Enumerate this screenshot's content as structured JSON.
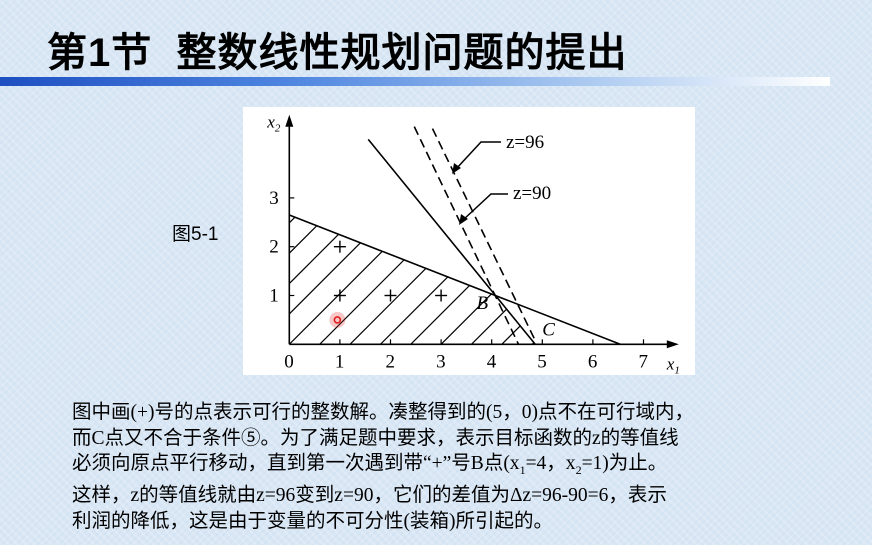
{
  "slide": {
    "title": "第1节  整数线性规划问题的提出",
    "figure_label": "图5-1",
    "paragraph_lines": [
      "图中画(+)号的点表示可行的整数解。凑整得到的(5，0)点不在可行域内，",
      "而C点又不合于条件⑤。为了满足题中要求，表示目标函数的z的等值线",
      [
        "必须向原点平行移动，直到第一次遇到带“+”号B点(x",
        "1",
        "=4，x",
        "2",
        "=1)为止。"
      ],
      "这样，z的等值线就由z=96变到z=90，它们的差值为Δz=96-90=6，表示",
      "利润的降低，这是由于变量的不可分性(装箱)所引起的。"
    ]
  },
  "chart_data": {
    "type": "line",
    "xlabel": "x1",
    "ylabel": "x2",
    "x_ticks": [
      "0",
      "1",
      "2",
      "3",
      "4",
      "5",
      "6",
      "7"
    ],
    "y_ticks": [
      "1",
      "2",
      "3"
    ],
    "xlim": [
      0,
      7.5
    ],
    "ylim": [
      0,
      4.5
    ],
    "constraint_lines": [
      {
        "from": [
          0,
          2.65
        ],
        "to": [
          6.54,
          0
        ],
        "style": "solid"
      },
      {
        "from": [
          1.56,
          4.2
        ],
        "to": [
          4.86,
          0
        ],
        "style": "solid"
      }
    ],
    "objective_lines": [
      {
        "name": "z=90",
        "from": [
          2.47,
          4.46
        ],
        "to": [
          4.53,
          0
        ],
        "style": "dashed"
      },
      {
        "name": "z=96",
        "from": [
          2.83,
          4.42
        ],
        "to": [
          4.84,
          0.12
        ],
        "style": "dashed"
      }
    ],
    "feasible_region": [
      [
        0,
        0
      ],
      [
        0,
        2.65
      ],
      [
        4.05,
        1.0
      ],
      [
        4.86,
        0
      ]
    ],
    "integer_points": [
      [
        1,
        2
      ],
      [
        1,
        1
      ],
      [
        2,
        1
      ],
      [
        3,
        1
      ]
    ],
    "point_labels": [
      {
        "text": "B",
        "at": [
          3.7,
          0.72
        ]
      },
      {
        "text": "C",
        "at": [
          5.0,
          0.18
        ]
      }
    ],
    "cursor_marker": [
      0.95,
      0.5
    ],
    "marker_color": "#e02020"
  }
}
